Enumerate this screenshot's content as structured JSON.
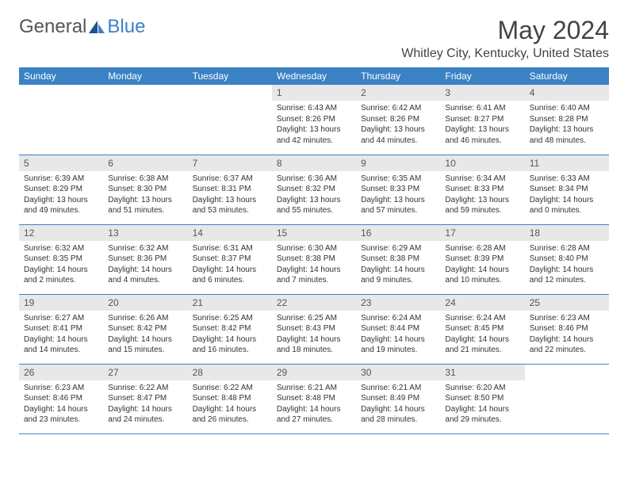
{
  "logo": {
    "text1": "General",
    "text2": "Blue"
  },
  "title": "May 2024",
  "location": "Whitley City, Kentucky, United States",
  "colors": {
    "header_bg": "#3b82c4",
    "header_text": "#ffffff",
    "daynum_bg": "#e8e8e8",
    "row_divider": "#3b82c4",
    "background": "#ffffff"
  },
  "weekdays": [
    "Sunday",
    "Monday",
    "Tuesday",
    "Wednesday",
    "Thursday",
    "Friday",
    "Saturday"
  ],
  "weeks": [
    [
      {
        "num": "",
        "lines": []
      },
      {
        "num": "",
        "lines": []
      },
      {
        "num": "",
        "lines": []
      },
      {
        "num": "1",
        "lines": [
          "Sunrise: 6:43 AM",
          "Sunset: 8:26 PM",
          "Daylight: 13 hours",
          "and 42 minutes."
        ]
      },
      {
        "num": "2",
        "lines": [
          "Sunrise: 6:42 AM",
          "Sunset: 8:26 PM",
          "Daylight: 13 hours",
          "and 44 minutes."
        ]
      },
      {
        "num": "3",
        "lines": [
          "Sunrise: 6:41 AM",
          "Sunset: 8:27 PM",
          "Daylight: 13 hours",
          "and 46 minutes."
        ]
      },
      {
        "num": "4",
        "lines": [
          "Sunrise: 6:40 AM",
          "Sunset: 8:28 PM",
          "Daylight: 13 hours",
          "and 48 minutes."
        ]
      }
    ],
    [
      {
        "num": "5",
        "lines": [
          "Sunrise: 6:39 AM",
          "Sunset: 8:29 PM",
          "Daylight: 13 hours",
          "and 49 minutes."
        ]
      },
      {
        "num": "6",
        "lines": [
          "Sunrise: 6:38 AM",
          "Sunset: 8:30 PM",
          "Daylight: 13 hours",
          "and 51 minutes."
        ]
      },
      {
        "num": "7",
        "lines": [
          "Sunrise: 6:37 AM",
          "Sunset: 8:31 PM",
          "Daylight: 13 hours",
          "and 53 minutes."
        ]
      },
      {
        "num": "8",
        "lines": [
          "Sunrise: 6:36 AM",
          "Sunset: 8:32 PM",
          "Daylight: 13 hours",
          "and 55 minutes."
        ]
      },
      {
        "num": "9",
        "lines": [
          "Sunrise: 6:35 AM",
          "Sunset: 8:33 PM",
          "Daylight: 13 hours",
          "and 57 minutes."
        ]
      },
      {
        "num": "10",
        "lines": [
          "Sunrise: 6:34 AM",
          "Sunset: 8:33 PM",
          "Daylight: 13 hours",
          "and 59 minutes."
        ]
      },
      {
        "num": "11",
        "lines": [
          "Sunrise: 6:33 AM",
          "Sunset: 8:34 PM",
          "Daylight: 14 hours",
          "and 0 minutes."
        ]
      }
    ],
    [
      {
        "num": "12",
        "lines": [
          "Sunrise: 6:32 AM",
          "Sunset: 8:35 PM",
          "Daylight: 14 hours",
          "and 2 minutes."
        ]
      },
      {
        "num": "13",
        "lines": [
          "Sunrise: 6:32 AM",
          "Sunset: 8:36 PM",
          "Daylight: 14 hours",
          "and 4 minutes."
        ]
      },
      {
        "num": "14",
        "lines": [
          "Sunrise: 6:31 AM",
          "Sunset: 8:37 PM",
          "Daylight: 14 hours",
          "and 6 minutes."
        ]
      },
      {
        "num": "15",
        "lines": [
          "Sunrise: 6:30 AM",
          "Sunset: 8:38 PM",
          "Daylight: 14 hours",
          "and 7 minutes."
        ]
      },
      {
        "num": "16",
        "lines": [
          "Sunrise: 6:29 AM",
          "Sunset: 8:38 PM",
          "Daylight: 14 hours",
          "and 9 minutes."
        ]
      },
      {
        "num": "17",
        "lines": [
          "Sunrise: 6:28 AM",
          "Sunset: 8:39 PM",
          "Daylight: 14 hours",
          "and 10 minutes."
        ]
      },
      {
        "num": "18",
        "lines": [
          "Sunrise: 6:28 AM",
          "Sunset: 8:40 PM",
          "Daylight: 14 hours",
          "and 12 minutes."
        ]
      }
    ],
    [
      {
        "num": "19",
        "lines": [
          "Sunrise: 6:27 AM",
          "Sunset: 8:41 PM",
          "Daylight: 14 hours",
          "and 14 minutes."
        ]
      },
      {
        "num": "20",
        "lines": [
          "Sunrise: 6:26 AM",
          "Sunset: 8:42 PM",
          "Daylight: 14 hours",
          "and 15 minutes."
        ]
      },
      {
        "num": "21",
        "lines": [
          "Sunrise: 6:25 AM",
          "Sunset: 8:42 PM",
          "Daylight: 14 hours",
          "and 16 minutes."
        ]
      },
      {
        "num": "22",
        "lines": [
          "Sunrise: 6:25 AM",
          "Sunset: 8:43 PM",
          "Daylight: 14 hours",
          "and 18 minutes."
        ]
      },
      {
        "num": "23",
        "lines": [
          "Sunrise: 6:24 AM",
          "Sunset: 8:44 PM",
          "Daylight: 14 hours",
          "and 19 minutes."
        ]
      },
      {
        "num": "24",
        "lines": [
          "Sunrise: 6:24 AM",
          "Sunset: 8:45 PM",
          "Daylight: 14 hours",
          "and 21 minutes."
        ]
      },
      {
        "num": "25",
        "lines": [
          "Sunrise: 6:23 AM",
          "Sunset: 8:46 PM",
          "Daylight: 14 hours",
          "and 22 minutes."
        ]
      }
    ],
    [
      {
        "num": "26",
        "lines": [
          "Sunrise: 6:23 AM",
          "Sunset: 8:46 PM",
          "Daylight: 14 hours",
          "and 23 minutes."
        ]
      },
      {
        "num": "27",
        "lines": [
          "Sunrise: 6:22 AM",
          "Sunset: 8:47 PM",
          "Daylight: 14 hours",
          "and 24 minutes."
        ]
      },
      {
        "num": "28",
        "lines": [
          "Sunrise: 6:22 AM",
          "Sunset: 8:48 PM",
          "Daylight: 14 hours",
          "and 26 minutes."
        ]
      },
      {
        "num": "29",
        "lines": [
          "Sunrise: 6:21 AM",
          "Sunset: 8:48 PM",
          "Daylight: 14 hours",
          "and 27 minutes."
        ]
      },
      {
        "num": "30",
        "lines": [
          "Sunrise: 6:21 AM",
          "Sunset: 8:49 PM",
          "Daylight: 14 hours",
          "and 28 minutes."
        ]
      },
      {
        "num": "31",
        "lines": [
          "Sunrise: 6:20 AM",
          "Sunset: 8:50 PM",
          "Daylight: 14 hours",
          "and 29 minutes."
        ]
      },
      {
        "num": "",
        "lines": []
      }
    ]
  ]
}
